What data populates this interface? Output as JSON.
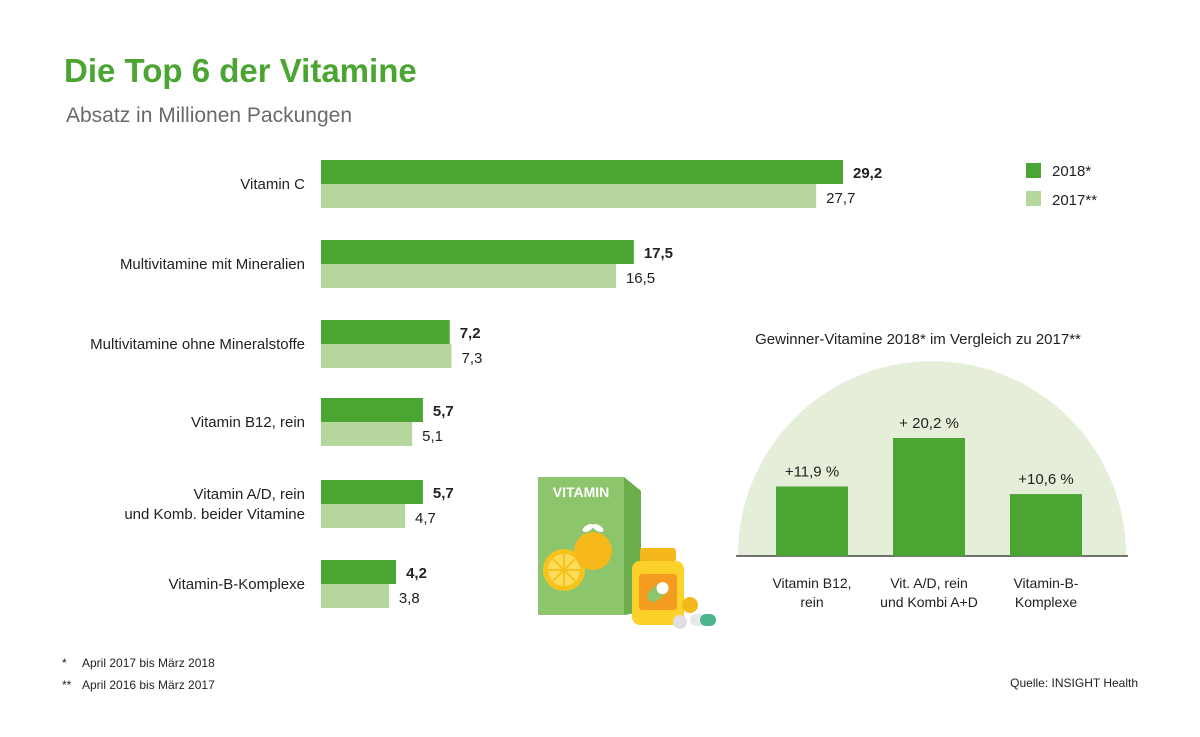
{
  "title": "Die Top 6 der Vitamine",
  "subtitle": "Absatz in Millionen Packungen",
  "colors": {
    "series_2018": "#4aa532",
    "series_2017": "#b5d79e",
    "title": "#4aa532",
    "semicircle": "#e4eed9"
  },
  "chart_data": [
    {
      "type": "bar",
      "orientation": "horizontal",
      "title": "Die Top 6 der Vitamine",
      "subtitle": "Absatz in Millionen Packungen",
      "categories": [
        [
          "Vitamin C"
        ],
        [
          "Multivitamine mit Mineralien"
        ],
        [
          "Multivitamine ohne Mineralstoffe"
        ],
        [
          "Vitamin B12, rein"
        ],
        [
          "Vitamin A/D, rein",
          "und Komb. beider Vitamine"
        ],
        [
          "Vitamin-B-Komplexe"
        ]
      ],
      "series": [
        {
          "name": "2018*",
          "values": [
            29.2,
            17.5,
            7.2,
            5.7,
            5.7,
            4.2
          ],
          "labels": [
            "29,2",
            "17,5",
            "7,2",
            "5,7",
            "5,7",
            "4,2"
          ]
        },
        {
          "name": "2017**",
          "values": [
            27.7,
            16.5,
            7.3,
            5.1,
            4.7,
            3.8
          ],
          "labels": [
            "27,7",
            "16,5",
            "7,3",
            "5,1",
            "4,7",
            "3,8"
          ]
        }
      ],
      "legend_position": "top-right",
      "grid": false
    },
    {
      "type": "bar",
      "title": "Gewinner-Vitamine 2018* im Vergleich zu 2017**",
      "categories": [
        [
          "Vitamin B12,",
          "rein"
        ],
        [
          "Vit. A/D, rein",
          "und Kombi A+D"
        ],
        [
          "Vitamin-B-",
          "Komplexe"
        ]
      ],
      "values": [
        11.9,
        20.2,
        10.6
      ],
      "labels": [
        "+11,9 %",
        "+ 20,2 %",
        "+10,6 %"
      ],
      "unit": "%",
      "grid": false
    }
  ],
  "illustration": {
    "box_label": "VITAMIN",
    "icons": [
      "vitamin-box-icon",
      "orange-icon",
      "pill-jar-icon",
      "capsule-icon"
    ]
  },
  "footnotes": [
    {
      "marker": "*",
      "text": "April 2017 bis März 2018"
    },
    {
      "marker": "**",
      "text": "April 2016 bis März 2017"
    }
  ],
  "source": "Quelle: INSIGHT Health"
}
